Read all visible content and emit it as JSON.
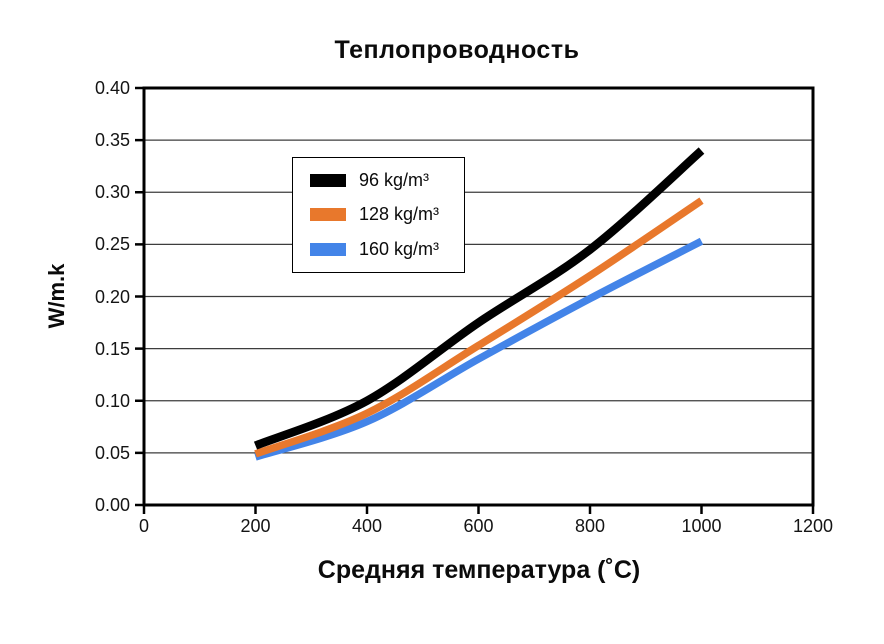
{
  "title": "Теплопроводность",
  "y_axis": {
    "label": "W/m.k",
    "tick_labels": [
      "0.40",
      "0.35",
      "0.30",
      "0.25",
      "0.20",
      "0.15",
      "0.10",
      "0.05",
      "0.00"
    ]
  },
  "x_axis": {
    "label": "Средняя температура (˚C)",
    "tick_labels": [
      "0",
      "200",
      "400",
      "600",
      "800",
      "1000",
      "1200"
    ]
  },
  "legend": {
    "items": [
      {
        "label": "96 kg/m³",
        "color": "#000000"
      },
      {
        "label": "128 kg/m³",
        "color": "#e8782c"
      },
      {
        "label": "160 kg/m³",
        "color": "#4384e8"
      }
    ]
  },
  "colors": {
    "series_black": "#000000",
    "series_orange": "#e8782c",
    "series_blue": "#4384e8",
    "gridline": "#3d3d3d",
    "axis": "#000000"
  },
  "chart_data": {
    "type": "line",
    "title": "Теплопроводность",
    "xlabel": "Средняя температура (˚C)",
    "ylabel": "W/m.k",
    "x": [
      200,
      400,
      600,
      800,
      1000
    ],
    "series": [
      {
        "name": "96 kg/m³",
        "color": "#000000",
        "width": 8.5,
        "values": [
          0.057,
          0.1,
          0.175,
          0.245,
          0.34
        ]
      },
      {
        "name": "128 kg/m³",
        "color": "#e8782c",
        "width": 7.5,
        "values": [
          0.049,
          0.088,
          0.153,
          0.22,
          0.292
        ]
      },
      {
        "name": "160 kg/m³",
        "color": "#4384e8",
        "width": 7.5,
        "values": [
          0.046,
          0.08,
          0.14,
          0.198,
          0.253
        ]
      }
    ],
    "xlim": [
      0,
      1200
    ],
    "ylim": [
      0.0,
      0.4
    ],
    "x_tick_step": 200,
    "y_tick_step": 0.05,
    "grid": "horizontal-only",
    "legend_position": "upper-left-inside"
  }
}
